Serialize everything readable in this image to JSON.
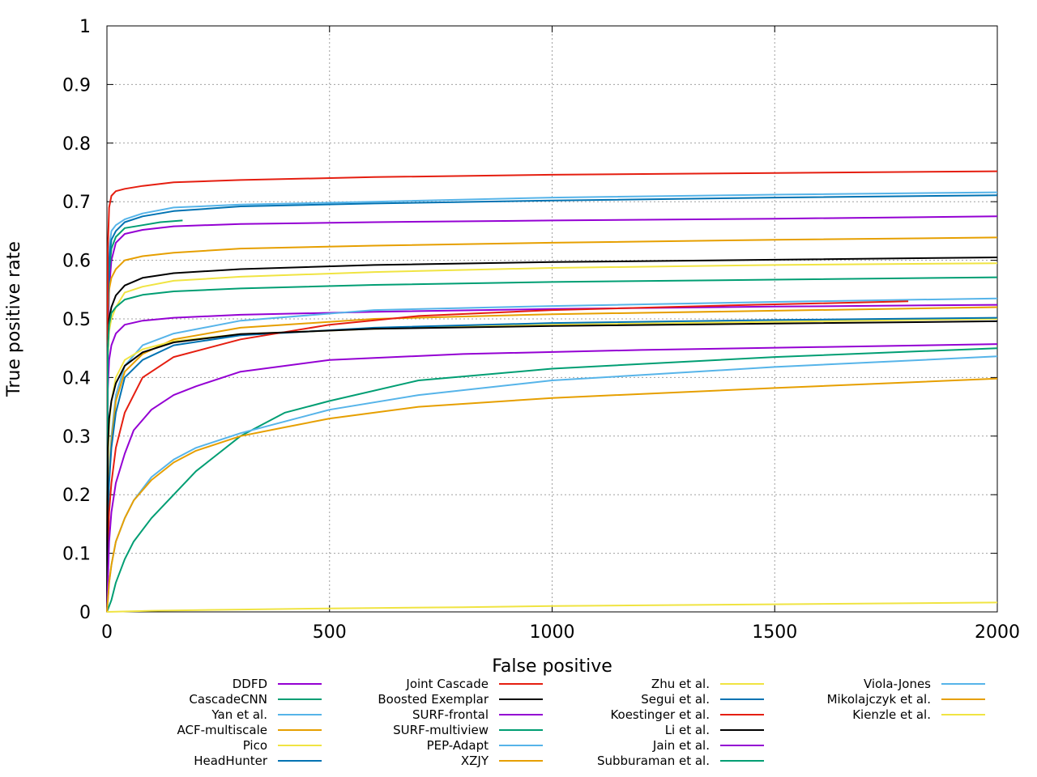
{
  "chart_data": {
    "type": "line",
    "title": "",
    "xlabel": "False positive",
    "ylabel": "True positive rate",
    "xlim": [
      0,
      2000
    ],
    "ylim": [
      0,
      1
    ],
    "xticks": [
      0,
      500,
      1000,
      1500,
      2000
    ],
    "yticks": [
      0,
      0.1,
      0.2,
      0.3,
      0.4,
      0.5,
      0.6,
      0.7,
      0.8,
      0.9,
      1
    ],
    "xtick_labels": [
      "0",
      "500",
      "1000",
      "1500",
      "2000"
    ],
    "ytick_labels": [
      "0",
      "0.1",
      "0.2",
      "0.3",
      "0.4",
      "0.5",
      "0.6",
      "0.7",
      "0.8",
      "0.9",
      "1"
    ],
    "grid": true,
    "legend_position": "bottom",
    "series": [
      {
        "name": "DDFD",
        "color": "#9400d3",
        "x": [
          0,
          2,
          5,
          10,
          20,
          40,
          80,
          150,
          300,
          600,
          1000,
          1500,
          2000
        ],
        "y": [
          0,
          0.45,
          0.55,
          0.6,
          0.63,
          0.645,
          0.652,
          0.658,
          0.662,
          0.665,
          0.668,
          0.671,
          0.675
        ]
      },
      {
        "name": "CascadeCNN",
        "color": "#009e73",
        "x": [
          0,
          2,
          5,
          10,
          20,
          40,
          80,
          120,
          170
        ],
        "y": [
          0,
          0.5,
          0.58,
          0.62,
          0.64,
          0.655,
          0.66,
          0.665,
          0.668
        ]
      },
      {
        "name": "Yan et al.",
        "color": "#56b4e9",
        "x": [
          0,
          2,
          5,
          10,
          20,
          40,
          80,
          150,
          300,
          600,
          1000,
          1500,
          2000
        ],
        "y": [
          0,
          0.55,
          0.62,
          0.65,
          0.66,
          0.67,
          0.68,
          0.69,
          0.695,
          0.7,
          0.707,
          0.712,
          0.716
        ]
      },
      {
        "name": "ACF-multiscale",
        "color": "#e69f00",
        "x": [
          0,
          2,
          5,
          10,
          20,
          40,
          80,
          150,
          300,
          600,
          1000,
          1500,
          2000
        ],
        "y": [
          0,
          0.5,
          0.55,
          0.57,
          0.585,
          0.6,
          0.607,
          0.613,
          0.62,
          0.625,
          0.63,
          0.635,
          0.639
        ]
      },
      {
        "name": "Pico",
        "color": "#f0e442",
        "x": [
          0,
          2,
          5,
          10,
          20,
          40,
          80,
          150,
          300,
          600,
          1000,
          1500,
          2000
        ],
        "y": [
          0,
          0.44,
          0.48,
          0.5,
          0.52,
          0.545,
          0.555,
          0.565,
          0.572,
          0.58,
          0.587,
          0.592,
          0.595
        ]
      },
      {
        "name": "HeadHunter",
        "color": "#0072b2",
        "x": [
          0,
          2,
          5,
          10,
          20,
          40,
          80,
          150,
          300,
          600,
          1000,
          1500,
          2000
        ],
        "y": [
          0,
          0.5,
          0.6,
          0.635,
          0.65,
          0.665,
          0.675,
          0.684,
          0.692,
          0.697,
          0.702,
          0.707,
          0.711
        ]
      },
      {
        "name": "Joint Cascade",
        "color": "#e51e10",
        "x": [
          0,
          2,
          5,
          10,
          20,
          40,
          80,
          150,
          300,
          600,
          1000,
          1500,
          2000
        ],
        "y": [
          0,
          0.62,
          0.69,
          0.71,
          0.718,
          0.722,
          0.727,
          0.733,
          0.737,
          0.742,
          0.746,
          0.749,
          0.752
        ]
      },
      {
        "name": "Boosted Exemplar",
        "color": "#000000",
        "x": [
          0,
          2,
          5,
          10,
          20,
          40,
          80,
          150,
          300,
          600,
          1000,
          1500,
          2000
        ],
        "y": [
          0,
          0.45,
          0.5,
          0.52,
          0.54,
          0.557,
          0.57,
          0.578,
          0.585,
          0.592,
          0.597,
          0.601,
          0.605
        ]
      },
      {
        "name": "SURF-frontal",
        "color": "#9400d3",
        "x": [
          0,
          2,
          5,
          10,
          20,
          40,
          80,
          150,
          300,
          600,
          1000,
          1500,
          2000
        ],
        "y": [
          0,
          0.38,
          0.43,
          0.455,
          0.475,
          0.49,
          0.497,
          0.502,
          0.507,
          0.512,
          0.517,
          0.521,
          0.524
        ]
      },
      {
        "name": "SURF-multiview",
        "color": "#009e73",
        "x": [
          0,
          2,
          5,
          10,
          20,
          40,
          80,
          150,
          300,
          600,
          1000,
          1500,
          2000
        ],
        "y": [
          0,
          0.45,
          0.49,
          0.51,
          0.52,
          0.533,
          0.541,
          0.547,
          0.552,
          0.558,
          0.563,
          0.567,
          0.571
        ]
      },
      {
        "name": "PEP-Adapt",
        "color": "#56b4e9",
        "x": [
          0,
          2,
          5,
          10,
          20,
          40,
          80,
          150,
          300,
          600,
          1000,
          1500,
          2000
        ],
        "y": [
          0,
          0.15,
          0.24,
          0.3,
          0.37,
          0.42,
          0.455,
          0.475,
          0.497,
          0.515,
          0.522,
          0.529,
          0.535
        ]
      },
      {
        "name": "XZJY",
        "color": "#e69f00",
        "x": [
          0,
          2,
          5,
          10,
          20,
          40,
          80,
          150,
          300,
          600,
          1000,
          1500,
          2000
        ],
        "y": [
          0,
          0.15,
          0.23,
          0.29,
          0.36,
          0.41,
          0.44,
          0.465,
          0.485,
          0.5,
          0.508,
          0.514,
          0.52
        ]
      },
      {
        "name": "Zhu et al.",
        "color": "#f0e442",
        "x": [
          0,
          2,
          5,
          10,
          20,
          40,
          80,
          150,
          300,
          600,
          1000,
          1500,
          2000
        ],
        "y": [
          0,
          0.25,
          0.32,
          0.36,
          0.4,
          0.43,
          0.448,
          0.462,
          0.474,
          0.483,
          0.49,
          0.495,
          0.5
        ]
      },
      {
        "name": "Segui et al.",
        "color": "#0072b2",
        "x": [
          0,
          2,
          5,
          10,
          20,
          40,
          80,
          150,
          300,
          600,
          1000,
          1500,
          2000
        ],
        "y": [
          0,
          0.15,
          0.22,
          0.28,
          0.34,
          0.4,
          0.43,
          0.455,
          0.472,
          0.485,
          0.493,
          0.498,
          0.502
        ]
      },
      {
        "name": "Koestinger et al.",
        "color": "#e51e10",
        "x": [
          0,
          2,
          5,
          10,
          20,
          40,
          80,
          150,
          300,
          500,
          700,
          1000,
          1400,
          1800
        ],
        "y": [
          0,
          0.1,
          0.17,
          0.22,
          0.28,
          0.34,
          0.4,
          0.435,
          0.465,
          0.49,
          0.505,
          0.515,
          0.523,
          0.53
        ]
      },
      {
        "name": "Li et al.",
        "color": "#000000",
        "x": [
          0,
          2,
          5,
          10,
          20,
          40,
          80,
          150,
          300,
          600,
          1000,
          1500,
          2000
        ],
        "y": [
          0,
          0.28,
          0.33,
          0.36,
          0.39,
          0.42,
          0.443,
          0.46,
          0.474,
          0.483,
          0.488,
          0.492,
          0.496
        ]
      },
      {
        "name": "Jain et al.",
        "color": "#9400d3",
        "x": [
          0,
          5,
          10,
          20,
          40,
          60,
          100,
          150,
          200,
          300,
          500,
          800,
          1200,
          1600,
          2000
        ],
        "y": [
          0,
          0.12,
          0.17,
          0.22,
          0.27,
          0.31,
          0.345,
          0.37,
          0.385,
          0.41,
          0.43,
          0.44,
          0.447,
          0.452,
          0.457
        ]
      },
      {
        "name": "Subburaman et al.",
        "color": "#009e73",
        "x": [
          0,
          10,
          20,
          40,
          60,
          100,
          150,
          200,
          250,
          300,
          350,
          400,
          500,
          700,
          1000,
          1500,
          2000
        ],
        "y": [
          0,
          0.02,
          0.05,
          0.09,
          0.12,
          0.16,
          0.2,
          0.24,
          0.27,
          0.3,
          0.32,
          0.34,
          0.36,
          0.395,
          0.415,
          0.435,
          0.45
        ]
      },
      {
        "name": "Viola-Jones",
        "color": "#56b4e9",
        "x": [
          0,
          5,
          10,
          20,
          40,
          60,
          100,
          150,
          200,
          300,
          400,
          500,
          700,
          1000,
          1500,
          2000
        ],
        "y": [
          0,
          0.05,
          0.08,
          0.12,
          0.16,
          0.19,
          0.23,
          0.26,
          0.28,
          0.305,
          0.325,
          0.345,
          0.37,
          0.395,
          0.418,
          0.436
        ]
      },
      {
        "name": "Mikolajczyk et al.",
        "color": "#e69f00",
        "x": [
          0,
          5,
          10,
          20,
          40,
          60,
          100,
          150,
          200,
          300,
          400,
          500,
          700,
          1000,
          1500,
          2000
        ],
        "y": [
          0,
          0.05,
          0.08,
          0.12,
          0.16,
          0.19,
          0.225,
          0.255,
          0.275,
          0.3,
          0.315,
          0.33,
          0.35,
          0.365,
          0.382,
          0.398
        ]
      },
      {
        "name": "Kienzle et al.",
        "color": "#f0e442",
        "x": [
          0,
          100,
          300,
          500,
          800,
          1000,
          1500,
          2000
        ],
        "y": [
          0,
          0.002,
          0.004,
          0.006,
          0.008,
          0.01,
          0.013,
          0.016
        ]
      }
    ]
  }
}
